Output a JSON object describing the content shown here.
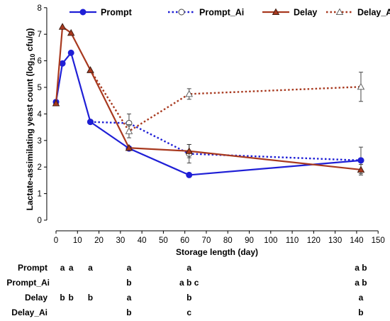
{
  "chart_data": {
    "type": "line",
    "xlabel": "Storage length   (day)",
    "ylabel_main": "Lactate-assimilating yeast count (log",
    "ylabel_sub": "10",
    "ylabel_end": " cfu/g)",
    "xlim": [
      -2,
      150
    ],
    "ylim": [
      0,
      8
    ],
    "xticks": [
      0,
      10,
      20,
      30,
      40,
      50,
      60,
      70,
      80,
      90,
      100,
      110,
      120,
      130,
      140,
      150
    ],
    "yticks": [
      0,
      1,
      2,
      3,
      4,
      5,
      6,
      7,
      8
    ],
    "legend_position": "top",
    "series": [
      {
        "name": "Prompt",
        "color": "#1f1fd6",
        "line": "solid",
        "marker": "circle-filled",
        "x": [
          0,
          3,
          7,
          16,
          34,
          62,
          142
        ],
        "y": [
          4.45,
          5.9,
          6.3,
          3.7,
          2.7,
          1.7,
          2.25
        ],
        "err": [
          0,
          0,
          0,
          0,
          0,
          0,
          0.5
        ]
      },
      {
        "name": "Prompt_Ai",
        "color": "#1f1fd6",
        "line": "dotted",
        "marker": "circle-open",
        "x": [
          16,
          34,
          62,
          142
        ],
        "y": [
          3.7,
          3.65,
          2.5,
          2.25
        ],
        "err": [
          0,
          0.35,
          0.35,
          0
        ]
      },
      {
        "name": "Delay",
        "color": "#a8391f",
        "line": "solid",
        "marker": "triangle-filled",
        "x": [
          0,
          3,
          7,
          16,
          34,
          62,
          142
        ],
        "y": [
          4.4,
          7.28,
          7.05,
          5.65,
          2.72,
          2.6,
          1.9
        ],
        "err": [
          0,
          0,
          0,
          0,
          0,
          0.25,
          0.2
        ]
      },
      {
        "name": "Delay_Ai",
        "color": "#a8391f",
        "line": "dotted",
        "marker": "triangle-open",
        "x": [
          16,
          34,
          62,
          142
        ],
        "y": [
          5.65,
          3.35,
          4.75,
          5.02
        ],
        "err": [
          0,
          0.25,
          0.2,
          0.55
        ]
      }
    ],
    "significance_rows": [
      {
        "label": "Prompt",
        "letters": [
          {
            "x": 3,
            "t": "a"
          },
          {
            "x": 7,
            "t": "a"
          },
          {
            "x": 16,
            "t": "a"
          },
          {
            "x": 34,
            "t": "a"
          },
          {
            "x": 62,
            "t": "a"
          },
          {
            "x": 142,
            "t": "a b"
          }
        ]
      },
      {
        "label": "Prompt_Ai",
        "letters": [
          {
            "x": 34,
            "t": "b"
          },
          {
            "x": 62,
            "t": "a b c"
          },
          {
            "x": 142,
            "t": "a b"
          }
        ]
      },
      {
        "label": "Delay",
        "letters": [
          {
            "x": 3,
            "t": "b"
          },
          {
            "x": 7,
            "t": "b"
          },
          {
            "x": 16,
            "t": "b"
          },
          {
            "x": 34,
            "t": "a"
          },
          {
            "x": 62,
            "t": "b"
          },
          {
            "x": 142,
            "t": "a"
          }
        ]
      },
      {
        "label": "Delay_Ai",
        "letters": [
          {
            "x": 34,
            "t": "b"
          },
          {
            "x": 62,
            "t": "c"
          },
          {
            "x": 142,
            "t": "b"
          }
        ]
      }
    ]
  }
}
